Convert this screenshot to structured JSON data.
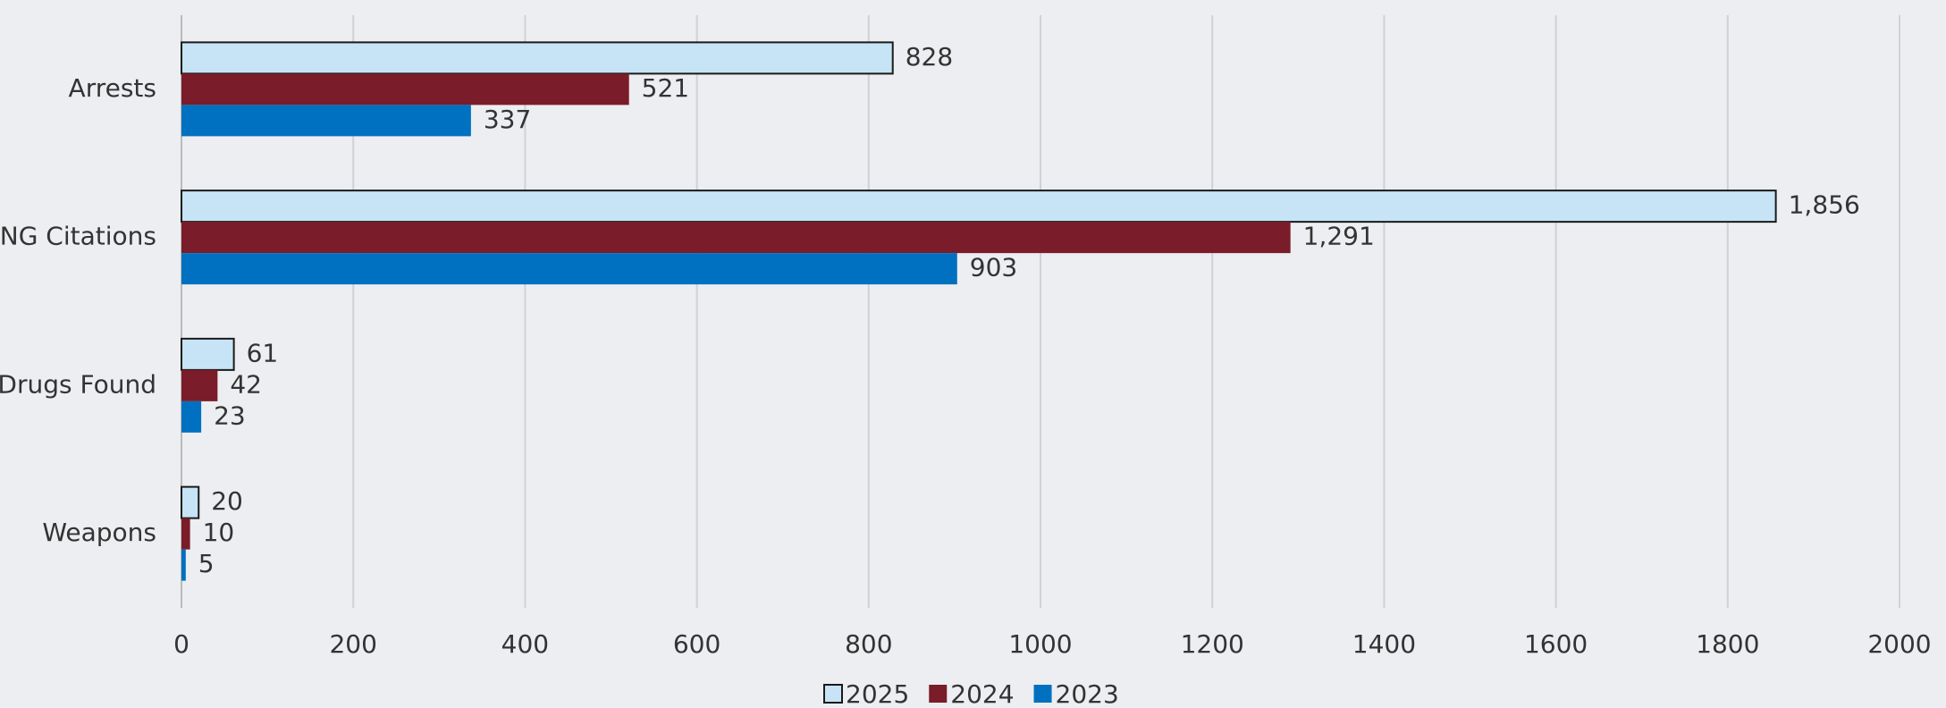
{
  "chart_data": {
    "type": "bar",
    "orientation": "horizontal",
    "categories": [
      "Arrests",
      "NG Citations",
      "Drugs Found",
      "Weapons"
    ],
    "series": [
      {
        "name": "2025",
        "color": "#c6e4f5",
        "values": [
          828,
          1856,
          61,
          20
        ],
        "value_labels": [
          "828",
          "1,856",
          "61",
          "20"
        ]
      },
      {
        "name": "2024",
        "color": "#7a1c29",
        "values": [
          521,
          1291,
          42,
          10
        ],
        "value_labels": [
          "521",
          "1,291",
          "42",
          "10"
        ]
      },
      {
        "name": "2023",
        "color": "#0070c0",
        "values": [
          337,
          903,
          23,
          5
        ],
        "value_labels": [
          "337",
          "903",
          "23",
          "5"
        ]
      }
    ],
    "xlim": [
      0,
      2000
    ],
    "xticks": [
      0,
      200,
      400,
      600,
      800,
      1000,
      1200,
      1400,
      1600,
      1800,
      2000
    ],
    "grid": true,
    "legend": "bottom"
  }
}
